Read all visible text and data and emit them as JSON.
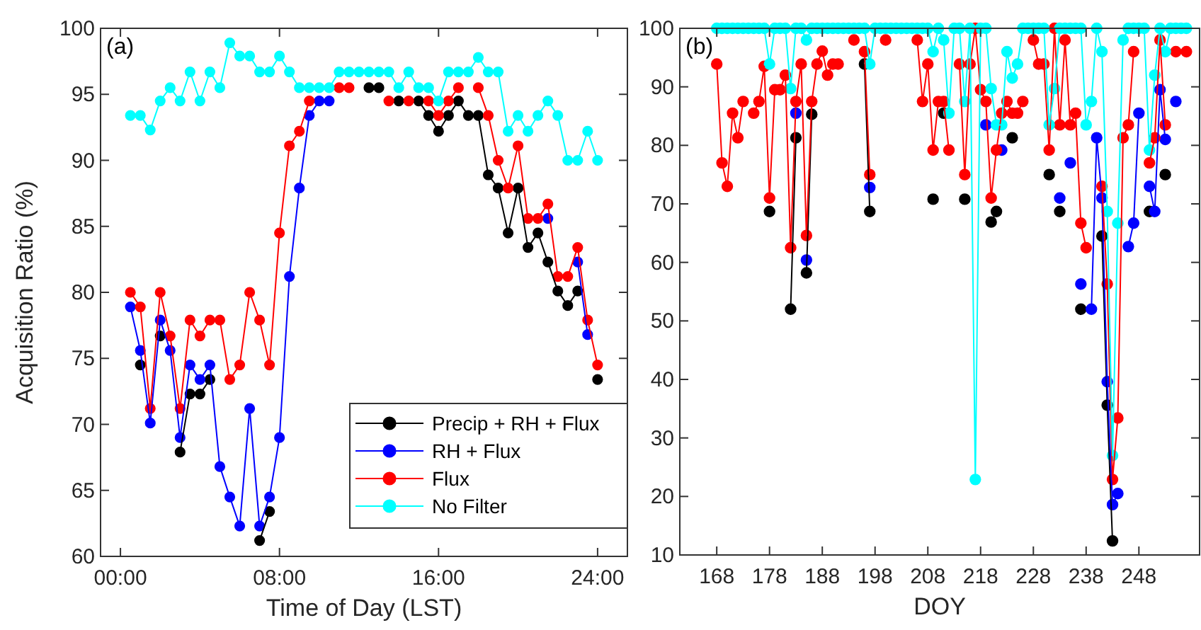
{
  "chart_data": [
    {
      "type": "line",
      "title": "(a)",
      "xlabel": "Time of Day (LST)",
      "ylabel": "Acquisition Ratio (%)",
      "marker": "circle",
      "legend": "bottom right",
      "xlim": [
        -1,
        25.5
      ],
      "ylim": [
        60,
        100
      ],
      "xticks": [
        {
          "value": 0,
          "label": "00:00"
        },
        {
          "value": 8,
          "label": "08:00"
        },
        {
          "value": 16,
          "label": "16:00"
        },
        {
          "value": 24,
          "label": "24:00"
        }
      ],
      "yticks": [
        60,
        65,
        70,
        75,
        80,
        85,
        90,
        95,
        100
      ],
      "x": [
        0.5,
        1,
        1.5,
        2,
        2.5,
        3,
        3.5,
        4,
        4.5,
        5,
        5.5,
        6,
        6.5,
        7,
        7.5,
        8,
        8.5,
        9,
        9.5,
        10,
        10.5,
        11,
        11.5,
        12,
        12.5,
        13,
        13.5,
        14,
        14.5,
        15,
        15.5,
        16,
        16.5,
        17,
        17.5,
        18,
        18.5,
        19,
        19.5,
        20,
        20.5,
        21,
        21.5,
        22,
        22.5,
        23,
        23.5,
        24
      ],
      "series": [
        {
          "name": "Precip + RH + Flux",
          "color": "#000000",
          "values": [
            null,
            74.5,
            null,
            76.7,
            null,
            67.9,
            72.3,
            72.3,
            73.4,
            null,
            null,
            null,
            null,
            61.2,
            63.4,
            null,
            null,
            null,
            null,
            null,
            null,
            null,
            null,
            null,
            95.5,
            95.5,
            null,
            94.5,
            null,
            94.5,
            93.4,
            92.2,
            93.4,
            94.5,
            93.4,
            93.4,
            88.9,
            87.9,
            84.5,
            87.9,
            83.4,
            84.5,
            82.3,
            80.1,
            79,
            80.1,
            null,
            73.4
          ]
        },
        {
          "name": "RH + Flux",
          "color": "#0000ff",
          "values": [
            78.9,
            75.6,
            70.1,
            77.9,
            75.6,
            69,
            74.5,
            73.4,
            74.5,
            66.8,
            64.5,
            62.3,
            71.2,
            62.3,
            64.5,
            69,
            81.2,
            87.9,
            93.4,
            94.5,
            94.5,
            null,
            null,
            null,
            null,
            null,
            null,
            null,
            null,
            null,
            null,
            null,
            null,
            null,
            null,
            null,
            null,
            null,
            null,
            null,
            null,
            null,
            85.6,
            null,
            null,
            82.3,
            76.8,
            null
          ]
        },
        {
          "name": "Flux",
          "color": "#ff0000",
          "values": [
            80,
            78.9,
            71.2,
            80,
            76.7,
            71.2,
            77.9,
            76.7,
            77.9,
            77.9,
            73.4,
            74.5,
            80,
            77.9,
            74.5,
            84.5,
            91.1,
            92.2,
            94.5,
            null,
            null,
            95.5,
            95.5,
            null,
            null,
            null,
            94.5,
            null,
            94.5,
            null,
            94.5,
            93.4,
            94.5,
            95.5,
            null,
            95.5,
            93.4,
            90,
            87.9,
            91.1,
            85.6,
            85.6,
            86.7,
            81.2,
            81.2,
            83.4,
            77.9,
            74.5
          ]
        },
        {
          "name": "No Filter",
          "color": "#00ffff",
          "values": [
            93.4,
            93.4,
            92.3,
            94.5,
            95.5,
            94.5,
            96.7,
            94.5,
            96.7,
            95.5,
            98.9,
            97.9,
            97.9,
            96.7,
            96.7,
            97.9,
            96.7,
            95.5,
            95.5,
            95.5,
            95.5,
            96.7,
            96.7,
            96.7,
            96.7,
            96.7,
            96.7,
            95.5,
            96.7,
            95.5,
            95.5,
            94.5,
            96.7,
            96.7,
            96.7,
            97.8,
            96.7,
            96.7,
            92.2,
            93.4,
            92.2,
            93.4,
            94.5,
            93.4,
            90,
            90,
            92.2,
            90
          ]
        }
      ]
    },
    {
      "type": "line",
      "title": "(b)",
      "xlabel": "DOY",
      "marker": "circle",
      "xlim": [
        161,
        259.5
      ],
      "ylim": [
        10,
        100
      ],
      "xticks": [
        168,
        178,
        188,
        198,
        208,
        218,
        228,
        238,
        248
      ],
      "yticks": [
        10,
        20,
        30,
        40,
        50,
        60,
        70,
        80,
        90,
        100
      ],
      "x": [
        168,
        169,
        170,
        171,
        172,
        173,
        174,
        175,
        176,
        177,
        178,
        179,
        180,
        181,
        182,
        183,
        184,
        185,
        186,
        187,
        188,
        189,
        190,
        191,
        192,
        193,
        194,
        195,
        196,
        197,
        198,
        199,
        200,
        201,
        202,
        203,
        204,
        205,
        206,
        207,
        208,
        209,
        210,
        211,
        212,
        213,
        214,
        215,
        216,
        217,
        218,
        219,
        220,
        221,
        222,
        223,
        224,
        225,
        226,
        227,
        228,
        229,
        230,
        231,
        232,
        233,
        234,
        235,
        236,
        237,
        238,
        239,
        240,
        241,
        242,
        243,
        244,
        245,
        246,
        247,
        248,
        249,
        250,
        251,
        252,
        253,
        254,
        255,
        256,
        257
      ],
      "series": [
        {
          "color": "#000000",
          "values": [
            null,
            null,
            null,
            null,
            null,
            null,
            null,
            null,
            null,
            null,
            68.7,
            null,
            null,
            null,
            52,
            81.3,
            null,
            58.2,
            85.3,
            null,
            null,
            null,
            null,
            null,
            null,
            null,
            null,
            null,
            93.9,
            68.7,
            null,
            null,
            null,
            null,
            null,
            null,
            null,
            null,
            null,
            null,
            null,
            70.8,
            null,
            85.5,
            null,
            null,
            null,
            70.8,
            null,
            null,
            null,
            null,
            66.9,
            68.7,
            null,
            null,
            81.3,
            null,
            null,
            null,
            null,
            null,
            null,
            75,
            null,
            68.7,
            null,
            null,
            null,
            52,
            null,
            null,
            null,
            64.5,
            35.6,
            12.4,
            null,
            null,
            null,
            null,
            null,
            null,
            68.7,
            null,
            null,
            75,
            null,
            null,
            null,
            null
          ]
        },
        {
          "color": "#0000ff",
          "values": [
            null,
            null,
            null,
            null,
            null,
            null,
            null,
            null,
            null,
            null,
            null,
            null,
            null,
            null,
            null,
            85.5,
            null,
            60.4,
            null,
            null,
            null,
            null,
            null,
            null,
            null,
            null,
            null,
            null,
            null,
            72.8,
            null,
            null,
            null,
            null,
            null,
            null,
            null,
            null,
            null,
            null,
            null,
            null,
            null,
            null,
            null,
            null,
            null,
            null,
            null,
            null,
            null,
            83.5,
            null,
            null,
            79.2,
            null,
            null,
            null,
            null,
            null,
            null,
            null,
            null,
            null,
            null,
            71,
            null,
            77,
            null,
            56.3,
            null,
            52,
            81.3,
            71,
            39.6,
            18.6,
            20.5,
            null,
            62.7,
            66.7,
            85.5,
            null,
            73,
            68.7,
            89.5,
            81,
            null,
            87.5,
            null,
            null
          ]
        },
        {
          "color": "#ff0000",
          "values": [
            93.9,
            77,
            73,
            85.5,
            81.3,
            87.5,
            null,
            85.5,
            87.5,
            93.5,
            71,
            89.5,
            89.5,
            92,
            62.5,
            87.5,
            93.9,
            64.6,
            87.5,
            93.9,
            96.1,
            92,
            93.9,
            93.9,
            null,
            null,
            98,
            null,
            96,
            75,
            null,
            null,
            98,
            null,
            null,
            null,
            null,
            null,
            98,
            87.5,
            93.9,
            79.2,
            87.5,
            87.5,
            79.2,
            null,
            93.9,
            75,
            93.9,
            100,
            89.5,
            87.5,
            71,
            79.2,
            85.5,
            87.5,
            85.5,
            85.5,
            87.5,
            null,
            98,
            93.9,
            93.9,
            79.2,
            100,
            83.5,
            98,
            83.5,
            85.5,
            66.7,
            62.5,
            null,
            null,
            73,
            56.3,
            22.9,
            33.4,
            81.3,
            83.5,
            96,
            null,
            null,
            77,
            81.3,
            98,
            83.5,
            null,
            96,
            null,
            96
          ]
        },
        {
          "color": "#00ffff",
          "values": [
            100,
            100,
            100,
            100,
            100,
            100,
            100,
            100,
            100,
            100,
            93.9,
            100,
            100,
            100,
            89.7,
            100,
            100,
            98,
            100,
            100,
            100,
            100,
            100,
            100,
            100,
            100,
            100,
            100,
            100,
            93.9,
            100,
            100,
            100,
            100,
            100,
            100,
            100,
            100,
            100,
            100,
            100,
            96,
            100,
            98,
            85.5,
            100,
            100,
            87.5,
            100,
            22.9,
            100,
            100,
            89.7,
            83.5,
            83.5,
            96,
            91.5,
            93.9,
            100,
            100,
            100,
            100,
            100,
            83.5,
            89.7,
            100,
            100,
            100,
            100,
            100,
            83.5,
            87.5,
            100,
            96,
            68.7,
            27,
            66.7,
            98,
            100,
            100,
            100,
            100,
            79.2,
            92,
            100,
            96,
            100,
            100,
            100,
            100
          ]
        }
      ]
    }
  ]
}
